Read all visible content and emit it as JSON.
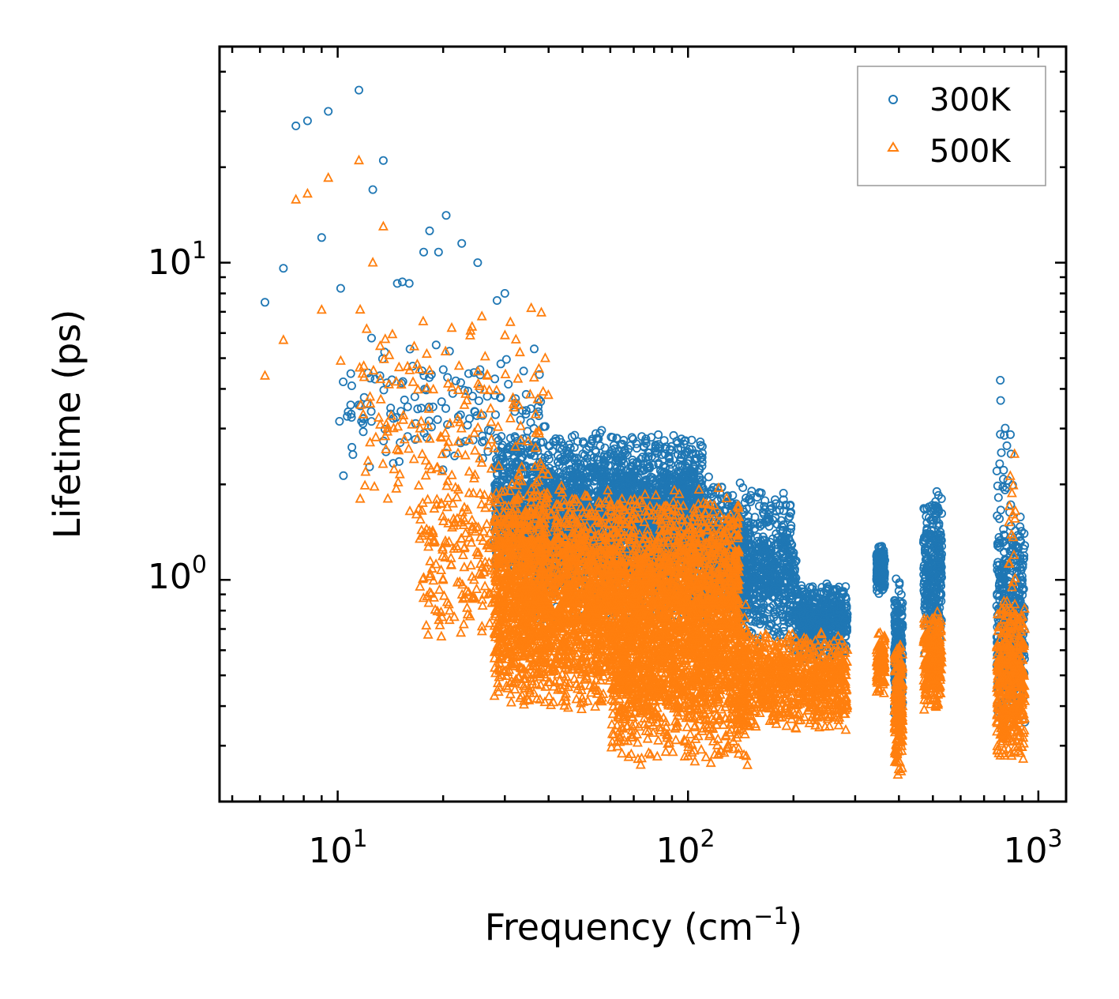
{
  "chart_data": {
    "type": "scatter",
    "title": "",
    "xlabel": "Frequency (cm",
    "xlabel_sup": "−1",
    "xlabel_end": ")",
    "ylabel": "Lifetime (ps)",
    "xscale": "log",
    "yscale": "log",
    "xlim": [
      4.6,
      1200
    ],
    "ylim": [
      0.2,
      48
    ],
    "x_major_ticks": [
      {
        "value": 10,
        "base": "10",
        "exp": "1"
      },
      {
        "value": 100,
        "base": "10",
        "exp": "2"
      },
      {
        "value": 1000,
        "base": "10",
        "exp": "3"
      }
    ],
    "y_major_ticks": [
      {
        "value": 1,
        "base": "10",
        "exp": "0"
      },
      {
        "value": 10,
        "base": "10",
        "exp": "1"
      }
    ],
    "legend_position": "top-right",
    "series": [
      {
        "name": "300K",
        "marker": "circle-open",
        "color": "#1f77b4",
        "clusters": [
          {
            "x": [
              6.2,
              7.0,
              7.6,
              8.2,
              9.0,
              9.4,
              10.2,
              11.5,
              13.5
            ],
            "y": [
              7.5,
              9.6,
              27,
              28,
              12,
              30,
              8.3,
              35,
              21
            ]
          },
          {
            "x": [
              12.6,
              13.2,
              14.8,
              15.3,
              16.0,
              17.6,
              18.3,
              19.4,
              20.4,
              22.6,
              25.1,
              28.5,
              30.0
            ],
            "y": [
              17,
              4.4,
              8.6,
              8.7,
              8.6,
              10.8,
              12.6,
              10.8,
              14.1,
              11.5,
              10,
              7.6,
              8.0
            ]
          },
          {
            "x": [
              10,
              40
            ],
            "y": [
              2.0,
              6.0
            ],
            "n": 150
          },
          {
            "x": [
              28,
              110
            ],
            "y": [
              1.0,
              3.0
            ],
            "n": 2400
          },
          {
            "x": [
              35,
              150
            ],
            "y": [
              0.7,
              2.2
            ],
            "n": 1300
          },
          {
            "x": [
              100,
              200
            ],
            "y": [
              0.8,
              2.0
            ],
            "n": 500
          },
          {
            "x": [
              140,
              205
            ],
            "y": [
              0.6,
              1.4
            ],
            "n": 320
          },
          {
            "x": [
              205,
              285
            ],
            "y": [
              0.55,
              1.0
            ],
            "n": 550
          },
          {
            "x": [
              345,
              365
            ],
            "y": [
              0.9,
              1.3
            ],
            "n": 140
          },
          {
            "x": [
              388,
              410
            ],
            "y": [
              0.35,
              1.05
            ],
            "n": 200
          },
          {
            "x": [
              470,
              530
            ],
            "y": [
              0.55,
              2.0
            ],
            "n": 300
          },
          {
            "x": [
              760,
              915
            ],
            "y": [
              0.35,
              1.7
            ],
            "n": 400
          },
          {
            "x": [
              760,
              850
            ],
            "y": [
              0.9,
              4.8
            ],
            "n": 30
          }
        ]
      },
      {
        "name": "500K",
        "marker": "triangle-open",
        "color": "#ff7f0e",
        "clusters": [
          {
            "x": [
              6.2,
              7.0,
              7.6,
              8.2,
              9.0,
              9.4,
              10.2,
              11.5,
              12.6,
              13.5
            ],
            "y": [
              4.4,
              5.7,
              15.8,
              16.5,
              7.1,
              18.5,
              4.9,
              21,
              10,
              13
            ]
          },
          {
            "x": [
              11.5,
              40
            ],
            "y": [
              1.2,
              8.0
            ],
            "n": 180
          },
          {
            "x": [
              17,
              40
            ],
            "y": [
              0.6,
              2.5
            ],
            "n": 300
          },
          {
            "x": [
              28,
              140
            ],
            "y": [
              0.38,
              2.0
            ],
            "n": 3800
          },
          {
            "x": [
              60,
              150
            ],
            "y": [
              0.25,
              0.9
            ],
            "n": 900
          },
          {
            "x": [
              140,
              285
            ],
            "y": [
              0.33,
              0.7
            ],
            "n": 800
          },
          {
            "x": [
              345,
              365
            ],
            "y": [
              0.43,
              0.7
            ],
            "n": 100
          },
          {
            "x": [
              388,
              410
            ],
            "y": [
              0.24,
              0.65
            ],
            "n": 220
          },
          {
            "x": [
              470,
              530
            ],
            "y": [
              0.38,
              0.8
            ],
            "n": 280
          },
          {
            "x": [
              760,
              915
            ],
            "y": [
              0.25,
              0.9
            ],
            "n": 420
          },
          {
            "x": [
              820,
              860
            ],
            "y": [
              0.8,
              3.0
            ],
            "n": 18
          }
        ]
      }
    ]
  }
}
